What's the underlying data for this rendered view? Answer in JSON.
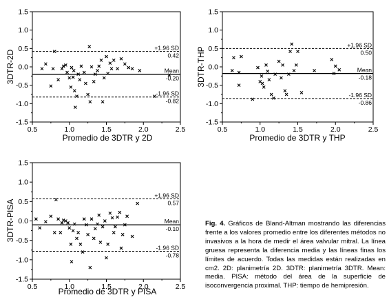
{
  "caption": {
    "label": "Fig. 4.",
    "text": "Gráficos de Bland-Altman mostrando las diferencias frente a los valores promedio entre los diferentes métodos no invasivos a la hora de medir el área valvular mitral. La línea gruesa representa la diferencia media y las líneas finas los límites de acuerdo. Todas las medidas están realizadas en cm2. 2D: planimetría 2D. 3DTR: planimetría 3DTR. Mean: media. PISA: método del área de la superficie de isoconvergencia proximal. THP: tiempo de hemipresión."
  },
  "chart_data": [
    {
      "type": "scatter",
      "xlabel": "Promedio de 3DTR y 2D",
      "ylabel": "3DTR-2D",
      "xlim": [
        0.5,
        2.5
      ],
      "ylim": [
        -1.5,
        1.5
      ],
      "xticks": [
        "0.5",
        "1.0",
        "1.5",
        "2.0",
        "2.5"
      ],
      "yticks": [
        "1.5",
        "1.0",
        "0.5",
        "0.0",
        "-0.5",
        "-1.0",
        "-1.5"
      ],
      "mean": -0.2,
      "upper": 0.42,
      "lower": -0.82,
      "labels": {
        "upper_sd": "+1.96 SD",
        "upper_val": "0.42",
        "mean": "Mean",
        "mean_val": "-0.20",
        "lower_sd": "-1.96 SD",
        "lower_val": "-0.82"
      },
      "points": [
        [
          0.63,
          -0.05
        ],
        [
          0.68,
          0.08
        ],
        [
          0.75,
          -0.52
        ],
        [
          0.78,
          -0.05
        ],
        [
          0.8,
          0.42
        ],
        [
          0.85,
          -0.35
        ],
        [
          0.9,
          -0.05
        ],
        [
          0.92,
          0.02
        ],
        [
          0.95,
          0.05
        ],
        [
          0.97,
          -0.15
        ],
        [
          1.0,
          -0.3
        ],
        [
          1.02,
          -0.55
        ],
        [
          1.03,
          -0.02
        ],
        [
          1.05,
          -0.28
        ],
        [
          1.06,
          -0.1
        ],
        [
          1.07,
          -0.65
        ],
        [
          1.08,
          -1.1
        ],
        [
          1.1,
          -0.8
        ],
        [
          1.12,
          -0.2
        ],
        [
          1.14,
          -0.35
        ],
        [
          1.16,
          0.02
        ],
        [
          1.2,
          -0.15
        ],
        [
          1.22,
          -0.45
        ],
        [
          1.25,
          -0.75
        ],
        [
          1.27,
          0.55
        ],
        [
          1.28,
          -0.95
        ],
        [
          1.3,
          0.0
        ],
        [
          1.33,
          -0.4
        ],
        [
          1.35,
          -0.2
        ],
        [
          1.38,
          -0.1
        ],
        [
          1.4,
          0.02
        ],
        [
          1.43,
          0.18
        ],
        [
          1.45,
          -0.95
        ],
        [
          1.47,
          -0.3
        ],
        [
          1.5,
          0.28
        ],
        [
          1.52,
          -0.18
        ],
        [
          1.55,
          0.1
        ],
        [
          1.57,
          -0.05
        ],
        [
          1.6,
          0.18
        ],
        [
          1.65,
          -0.05
        ],
        [
          1.7,
          0.22
        ],
        [
          1.75,
          0.08
        ],
        [
          1.8,
          -0.02
        ],
        [
          1.85,
          -0.05
        ],
        [
          1.95,
          -0.1
        ],
        [
          2.15,
          -0.8
        ],
        [
          2.35,
          -0.22
        ]
      ]
    },
    {
      "type": "scatter",
      "xlabel": "Promedio de 3DTR y THP",
      "ylabel": "3DTR-THP",
      "xlim": [
        0.5,
        2.5
      ],
      "ylim": [
        -1.5,
        1.5
      ],
      "xticks": [
        "0.5",
        "1.0",
        "1.5",
        "2.0",
        "2.5"
      ],
      "yticks": [
        "1.5",
        "1.0",
        "0.5",
        "0.0",
        "-0.5",
        "-1.0",
        "-1.5"
      ],
      "mean": -0.18,
      "upper": 0.5,
      "lower": -0.86,
      "labels": {
        "upper_sd": "+1.96 SD",
        "upper_val": "0.50",
        "mean": "Mean",
        "mean_val": "-0.18",
        "lower_sd": "-1.96 SD",
        "lower_val": "-0.86"
      },
      "points": [
        [
          0.63,
          -0.1
        ],
        [
          0.65,
          0.25
        ],
        [
          0.72,
          -0.15
        ],
        [
          0.72,
          -0.5
        ],
        [
          0.75,
          0.28
        ],
        [
          0.9,
          -0.88
        ],
        [
          0.97,
          -0.02
        ],
        [
          1.0,
          -0.4
        ],
        [
          1.02,
          -0.25
        ],
        [
          1.03,
          -0.45
        ],
        [
          1.05,
          -0.55
        ],
        [
          1.08,
          0.05
        ],
        [
          1.1,
          -0.12
        ],
        [
          1.12,
          -0.35
        ],
        [
          1.15,
          -0.75
        ],
        [
          1.18,
          -0.85
        ],
        [
          1.2,
          -0.2
        ],
        [
          1.25,
          0.15
        ],
        [
          1.28,
          -0.3
        ],
        [
          1.3,
          0.05
        ],
        [
          1.33,
          -0.65
        ],
        [
          1.35,
          -0.75
        ],
        [
          1.38,
          -0.2
        ],
        [
          1.4,
          0.42
        ],
        [
          1.42,
          0.62
        ],
        [
          1.45,
          -0.1
        ],
        [
          1.48,
          0.05
        ],
        [
          1.5,
          0.42
        ],
        [
          1.55,
          -0.7
        ],
        [
          1.72,
          -0.1
        ],
        [
          1.95,
          0.2
        ],
        [
          1.98,
          -0.18
        ],
        [
          2.0,
          0.02
        ],
        [
          2.05,
          -0.08
        ]
      ]
    },
    {
      "type": "scatter",
      "xlabel": "Promedio de 3DTR y PISA",
      "ylabel": "3DTR-PISA",
      "xlim": [
        0.5,
        2.5
      ],
      "ylim": [
        -1.5,
        1.5
      ],
      "xticks": [
        "0.5",
        "1.0",
        "1.5",
        "2.0",
        "2.5"
      ],
      "yticks": [
        "1.5",
        "1.0",
        "0.5",
        "0.0",
        "-0.5",
        "-1.0",
        "-1.5"
      ],
      "mean": -0.1,
      "upper": 0.57,
      "lower": -0.78,
      "labels": {
        "upper_sd": "+1.96 SD",
        "upper_val": "0.57",
        "mean": "Mean",
        "mean_val": "-0.10",
        "lower_sd": "-1.96 SD",
        "lower_val": "-0.78"
      },
      "points": [
        [
          0.55,
          0.05
        ],
        [
          0.6,
          -0.18
        ],
        [
          0.68,
          -0.02
        ],
        [
          0.75,
          0.12
        ],
        [
          0.8,
          -0.3
        ],
        [
          0.82,
          0.55
        ],
        [
          0.85,
          0.05
        ],
        [
          0.88,
          -0.3
        ],
        [
          0.9,
          -0.05
        ],
        [
          0.92,
          0.02
        ],
        [
          0.95,
          0.0
        ],
        [
          0.98,
          -0.05
        ],
        [
          1.0,
          -0.18
        ],
        [
          1.02,
          -0.6
        ],
        [
          1.03,
          -1.05
        ],
        [
          1.05,
          -0.25
        ],
        [
          1.07,
          -0.08
        ],
        [
          1.1,
          -0.45
        ],
        [
          1.12,
          -0.3
        ],
        [
          1.15,
          -0.6
        ],
        [
          1.18,
          -0.8
        ],
        [
          1.2,
          0.05
        ],
        [
          1.23,
          -0.1
        ],
        [
          1.25,
          -0.35
        ],
        [
          1.28,
          -1.2
        ],
        [
          1.3,
          0.05
        ],
        [
          1.33,
          -0.45
        ],
        [
          1.35,
          -0.2
        ],
        [
          1.38,
          -0.08
        ],
        [
          1.4,
          0.15
        ],
        [
          1.42,
          -0.55
        ],
        [
          1.45,
          -0.15
        ],
        [
          1.48,
          0.0
        ],
        [
          1.5,
          -0.95
        ],
        [
          1.52,
          -0.6
        ],
        [
          1.55,
          0.2
        ],
        [
          1.58,
          0.08
        ],
        [
          1.6,
          -0.3
        ],
        [
          1.62,
          -0.15
        ],
        [
          1.65,
          0.1
        ],
        [
          1.68,
          0.22
        ],
        [
          1.7,
          -0.7
        ],
        [
          1.72,
          -0.35
        ],
        [
          1.75,
          -0.1
        ],
        [
          1.78,
          0.12
        ],
        [
          1.85,
          -0.4
        ],
        [
          1.92,
          0.45
        ]
      ]
    }
  ]
}
